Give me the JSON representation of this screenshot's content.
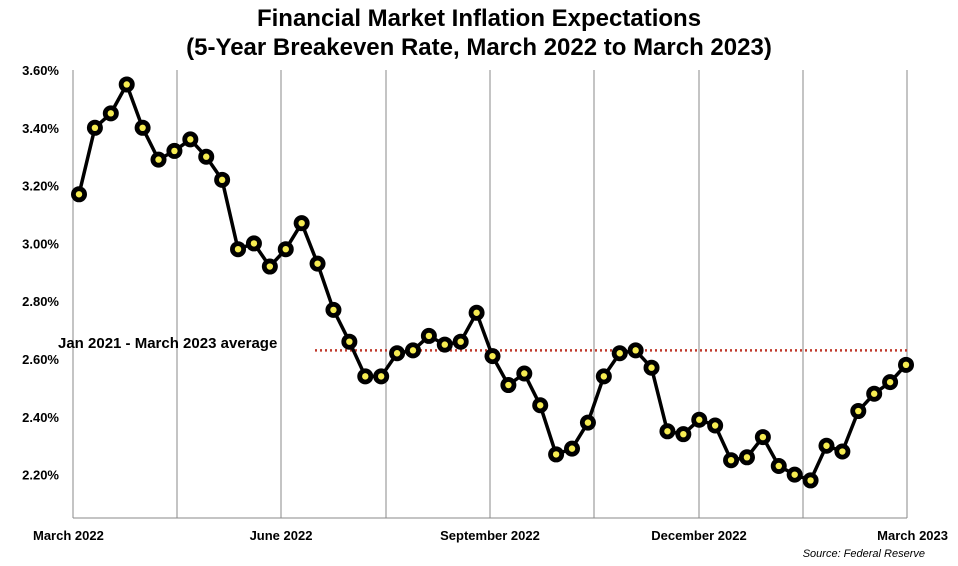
{
  "chart_data": {
    "type": "line",
    "title": "Financial Market Inflation Expectations",
    "subtitle": "(5-Year Breakeven Rate, March 2022 to March 2023)",
    "source": "Source: Federal Reserve",
    "y_tick_labels": [
      "2.20%",
      "2.40%",
      "2.60%",
      "2.80%",
      "3.00%",
      "3.20%",
      "3.40%",
      "3.60%"
    ],
    "y_ticks": [
      2.2,
      2.4,
      2.6,
      2.8,
      3.0,
      3.2,
      3.4,
      3.6
    ],
    "ylim": [
      2.05,
      3.6
    ],
    "x_tick_labels": [
      "March 2022",
      "June 2022",
      "September 2022",
      "December 2022",
      "March 2023"
    ],
    "grid": "vertical",
    "average_line": {
      "label": "Jan 2021 - March 2023 average",
      "value": 2.63,
      "color": "#c0392b"
    },
    "series": [
      {
        "values": [
          3.17,
          3.4,
          3.45,
          3.55,
          3.4,
          3.29,
          3.32,
          3.36,
          3.3,
          3.22,
          2.98,
          3.0,
          2.92,
          2.98,
          3.07,
          2.93,
          2.77,
          2.66,
          2.54,
          2.54,
          2.62,
          2.63,
          2.68,
          2.65,
          2.66,
          2.76,
          2.61,
          2.51,
          2.55,
          2.44,
          2.27,
          2.29,
          2.38,
          2.54,
          2.62,
          2.63,
          2.57,
          2.35,
          2.34,
          2.39,
          2.37,
          2.25,
          2.26,
          2.33,
          2.23,
          2.2,
          2.18,
          2.3,
          2.28,
          2.42,
          2.48,
          2.52,
          2.58
        ]
      }
    ]
  }
}
